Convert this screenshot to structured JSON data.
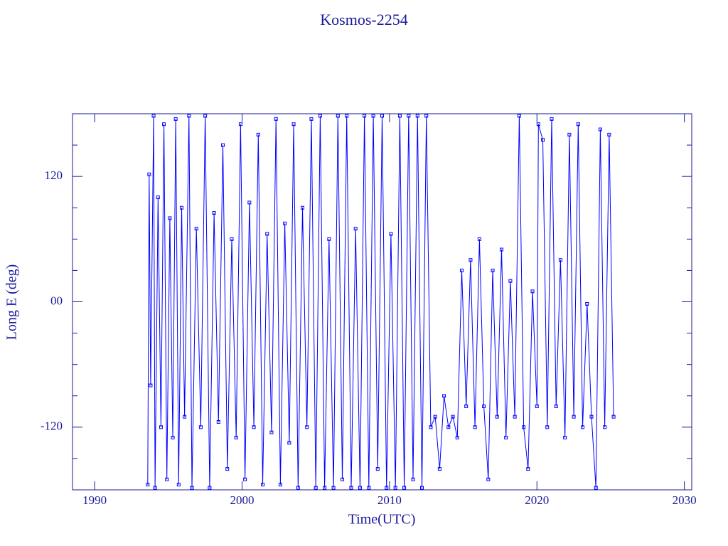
{
  "chart_data": {
    "type": "line",
    "title": "Kosmos-2254",
    "xlabel": "Time(UTC)",
    "ylabel": "Long E (deg)",
    "color": "#0000ff",
    "markers": true,
    "x": [
      1993.6,
      1993.7,
      1993.8,
      1994.0,
      1994.1,
      1994.3,
      1994.5,
      1994.7,
      1994.9,
      1995.1,
      1995.3,
      1995.5,
      1995.7,
      1995.9,
      1996.1,
      1996.4,
      1996.6,
      1996.9,
      1997.2,
      1997.5,
      1997.8,
      1998.1,
      1998.4,
      1998.7,
      1999.0,
      1999.3,
      1999.6,
      1999.9,
      2000.2,
      2000.5,
      2000.8,
      2001.1,
      2001.4,
      2001.7,
      2002.0,
      2002.3,
      2002.6,
      2002.9,
      2003.2,
      2003.5,
      2003.8,
      2004.1,
      2004.4,
      2004.7,
      2005.0,
      2005.3,
      2005.6,
      2005.9,
      2006.2,
      2006.5,
      2006.8,
      2007.1,
      2007.4,
      2007.7,
      2008.0,
      2008.3,
      2008.6,
      2008.9,
      2009.2,
      2009.5,
      2009.8,
      2010.1,
      2010.4,
      2010.7,
      2011.0,
      2011.3,
      2011.6,
      2011.9,
      2012.2,
      2012.5,
      2012.8,
      2013.1,
      2013.4,
      2013.7,
      2014.0,
      2014.3,
      2014.6,
      2014.9,
      2015.2,
      2015.5,
      2015.8,
      2016.1,
      2016.4,
      2016.7,
      2017.0,
      2017.3,
      2017.6,
      2017.9,
      2018.2,
      2018.5,
      2018.8,
      2019.1,
      2019.4,
      2019.7,
      2020.0,
      2020.1,
      2020.4,
      2020.7,
      2021.0,
      2021.3,
      2021.6,
      2021.9,
      2022.2,
      2022.5,
      2022.8,
      2023.1,
      2023.4,
      2023.7,
      2024.0,
      2024.3,
      2024.6,
      2024.9,
      2025.2
    ],
    "values": [
      -175,
      122,
      -80,
      178,
      -178,
      100,
      -120,
      170,
      -170,
      80,
      -130,
      175,
      -175,
      90,
      -110,
      178,
      -178,
      70,
      -120,
      178,
      -178,
      85,
      -115,
      150,
      -160,
      60,
      -130,
      170,
      -170,
      95,
      -120,
      160,
      -175,
      65,
      -125,
      175,
      -175,
      75,
      -135,
      170,
      -178,
      90,
      -120,
      175,
      -178,
      178,
      -178,
      60,
      -178,
      178,
      -170,
      178,
      -178,
      70,
      -178,
      178,
      -178,
      178,
      -160,
      178,
      -178,
      65,
      -178,
      178,
      -178,
      178,
      -170,
      178,
      -178,
      178,
      -120,
      -110,
      -160,
      -90,
      -120,
      -110,
      -130,
      30,
      -100,
      40,
      -120,
      60,
      -100,
      -170,
      30,
      -110,
      50,
      -130,
      20,
      -110,
      178,
      -120,
      -160,
      10,
      -100,
      170,
      155,
      -120,
      175,
      -100,
      40,
      -130,
      160,
      -110,
      170,
      -120,
      -2,
      -110,
      -178,
      165,
      -120,
      160,
      -110
    ],
    "xlim": [
      1988.5,
      2030.5
    ],
    "xticks": [
      1990,
      2000,
      2010,
      2020,
      2030
    ],
    "ylim": [
      -180,
      180
    ],
    "yticks": [
      -120,
      {
        "value": 0,
        "label": "00"
      },
      120
    ],
    "yminorticks": [
      -150,
      -90,
      -60,
      -30,
      30,
      60,
      90,
      150
    ]
  }
}
